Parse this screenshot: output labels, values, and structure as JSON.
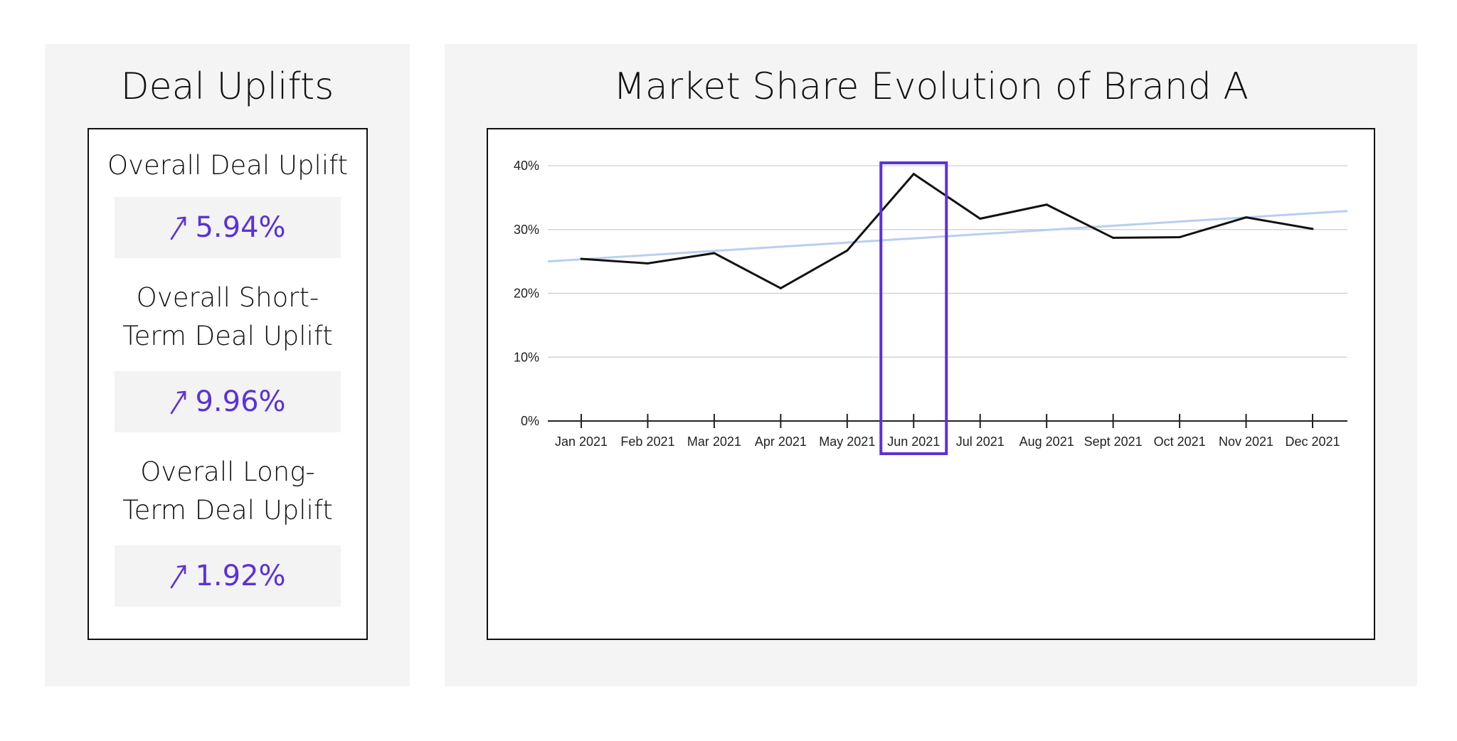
{
  "left_panel": {
    "title": "Deal Uplifts",
    "metrics": [
      {
        "label_lines": [
          "Overall Deal Uplift"
        ],
        "value": "5.94%",
        "icon": "arrow-up-right-icon"
      },
      {
        "label_lines": [
          "Overall Short-",
          "Term Deal Uplift"
        ],
        "value": "9.96%",
        "icon": "arrow-up-right-icon"
      },
      {
        "label_lines": [
          "Overall Long-",
          "Term Deal Uplift"
        ],
        "value": "1.92%",
        "icon": "arrow-up-right-icon"
      }
    ]
  },
  "right_panel": {
    "title": "Market Share Evolution of Brand A"
  },
  "colors": {
    "accent": "#5b32d6",
    "series_line": "#111111",
    "trend_line": "#b7cff0",
    "gridline": "#d5d5da",
    "panel_bg": "#f4f4f5"
  },
  "chart_data": {
    "type": "line",
    "title": "Market Share Evolution of Brand A",
    "categories": [
      "Jan 2021",
      "Feb 2021",
      "Mar 2021",
      "Apr 2021",
      "May 2021",
      "Jun 2021",
      "Jul 2021",
      "Aug 2021",
      "Sept 2021",
      "Oct 2021",
      "Nov 2021",
      "Dec 2021"
    ],
    "series": [
      {
        "values": [
          25.4,
          24.7,
          26.3,
          20.8,
          26.7,
          38.7,
          31.7,
          33.9,
          28.7,
          28.8,
          31.9,
          30.1
        ]
      }
    ],
    "trendline": {
      "start": 25.0,
      "end": 32.9
    },
    "highlight_category": "Jun 2021",
    "yticks": [
      "0%",
      "10%",
      "20%",
      "30%",
      "40%"
    ],
    "ylim": [
      0,
      40
    ],
    "grid": true,
    "xlabel": "",
    "ylabel": ""
  }
}
